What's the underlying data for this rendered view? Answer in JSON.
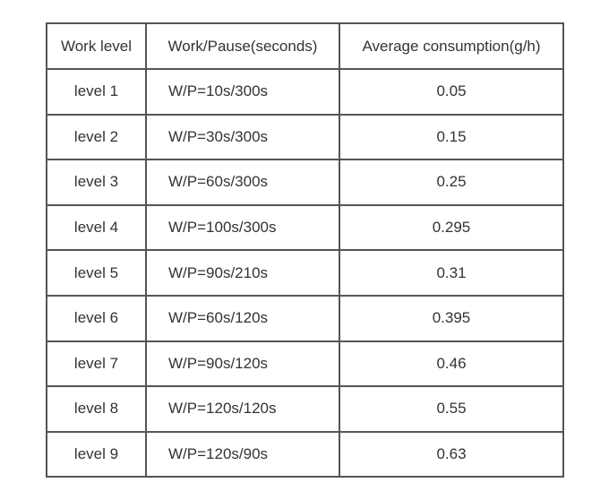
{
  "table": {
    "header": [
      "Work level",
      "Work/Pause(seconds)",
      "Average consumption(g/h)"
    ],
    "rows": [
      [
        "level 1",
        "W/P=10s/300s",
        "0.05"
      ],
      [
        "level 2",
        "W/P=30s/300s",
        "0.15"
      ],
      [
        "level 3",
        "W/P=60s/300s",
        "0.25"
      ],
      [
        "level 4",
        "W/P=100s/300s",
        "0.295"
      ],
      [
        "level 5",
        "W/P=90s/210s",
        "0.31"
      ],
      [
        "level 6",
        "W/P=60s/120s",
        "0.395"
      ],
      [
        "level 7",
        "W/P=90s/120s",
        "0.46"
      ],
      [
        "level 8",
        "W/P=120s/120s",
        "0.55"
      ],
      [
        "level 9",
        "W/P=120s/90s",
        "0.63"
      ]
    ]
  }
}
